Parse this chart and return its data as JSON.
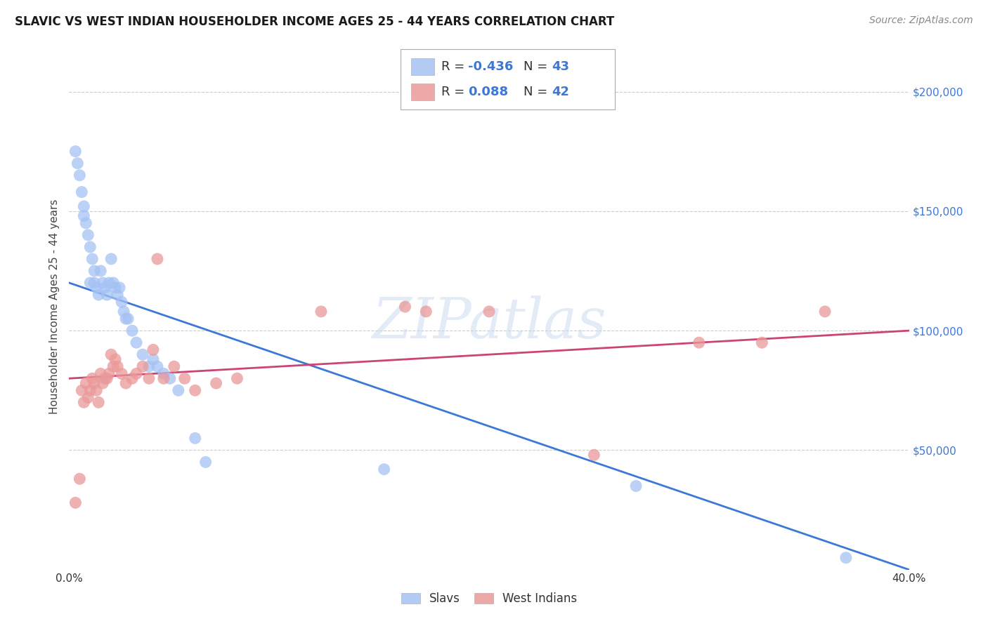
{
  "title": "SLAVIC VS WEST INDIAN HOUSEHOLDER INCOME AGES 25 - 44 YEARS CORRELATION CHART",
  "source": "Source: ZipAtlas.com",
  "ylabel": "Householder Income Ages 25 - 44 years",
  "xlim": [
    0.0,
    0.4
  ],
  "ylim": [
    0,
    220000
  ],
  "yticks": [
    50000,
    100000,
    150000,
    200000
  ],
  "ytick_labels": [
    "$50,000",
    "$100,000",
    "$150,000",
    "$200,000"
  ],
  "xticks": [
    0.0,
    0.05,
    0.1,
    0.15,
    0.2,
    0.25,
    0.3,
    0.35,
    0.4
  ],
  "xtick_labels": [
    "0.0%",
    "",
    "",
    "",
    "",
    "",
    "",
    "",
    "40.0%"
  ],
  "slavs_R": "-0.436",
  "slavs_N": "43",
  "west_indians_R": "0.088",
  "west_indians_N": "42",
  "slavs_color": "#a4c2f4",
  "west_indians_color": "#ea9999",
  "slavs_line_color": "#3c78d8",
  "west_indians_line_color": "#cc4477",
  "value_color": "#3c78d8",
  "background_color": "#ffffff",
  "watermark": "ZIPatlas",
  "slavs_x": [
    0.003,
    0.004,
    0.005,
    0.006,
    0.007,
    0.007,
    0.008,
    0.009,
    0.01,
    0.01,
    0.011,
    0.012,
    0.012,
    0.013,
    0.014,
    0.015,
    0.016,
    0.017,
    0.018,
    0.019,
    0.02,
    0.021,
    0.022,
    0.023,
    0.024,
    0.025,
    0.026,
    0.027,
    0.028,
    0.03,
    0.032,
    0.035,
    0.038,
    0.04,
    0.042,
    0.045,
    0.048,
    0.052,
    0.06,
    0.065,
    0.15,
    0.27,
    0.37
  ],
  "slavs_y": [
    175000,
    170000,
    165000,
    158000,
    152000,
    148000,
    145000,
    140000,
    135000,
    120000,
    130000,
    125000,
    120000,
    118000,
    115000,
    125000,
    120000,
    118000,
    115000,
    120000,
    130000,
    120000,
    118000,
    115000,
    118000,
    112000,
    108000,
    105000,
    105000,
    100000,
    95000,
    90000,
    85000,
    88000,
    85000,
    82000,
    80000,
    75000,
    55000,
    45000,
    42000,
    35000,
    5000
  ],
  "west_indians_x": [
    0.003,
    0.005,
    0.006,
    0.007,
    0.008,
    0.009,
    0.01,
    0.011,
    0.012,
    0.013,
    0.014,
    0.015,
    0.016,
    0.017,
    0.018,
    0.019,
    0.02,
    0.021,
    0.022,
    0.023,
    0.025,
    0.027,
    0.03,
    0.032,
    0.035,
    0.038,
    0.04,
    0.042,
    0.045,
    0.05,
    0.055,
    0.06,
    0.07,
    0.08,
    0.12,
    0.16,
    0.17,
    0.2,
    0.25,
    0.3,
    0.33,
    0.36
  ],
  "west_indians_y": [
    28000,
    38000,
    75000,
    70000,
    78000,
    72000,
    75000,
    80000,
    78000,
    75000,
    70000,
    82000,
    78000,
    80000,
    80000,
    82000,
    90000,
    85000,
    88000,
    85000,
    82000,
    78000,
    80000,
    82000,
    85000,
    80000,
    92000,
    130000,
    80000,
    85000,
    80000,
    75000,
    78000,
    80000,
    108000,
    110000,
    108000,
    108000,
    48000,
    95000,
    95000,
    108000
  ],
  "slavs_line_x0": 0.0,
  "slavs_line_y0": 120000,
  "slavs_line_x1": 0.4,
  "slavs_line_y1": 0,
  "west_line_x0": 0.0,
  "west_line_y0": 80000,
  "west_line_x1": 0.4,
  "west_line_y1": 100000
}
